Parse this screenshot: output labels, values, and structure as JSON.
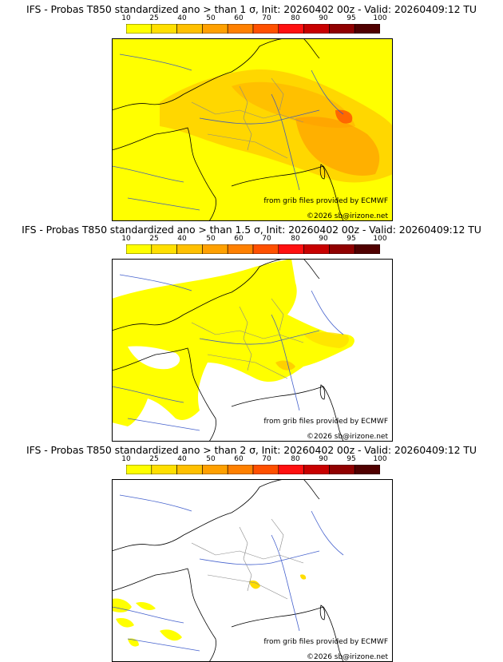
{
  "colorbar": {
    "ticks": [
      "10",
      "25",
      "40",
      "50",
      "60",
      "70",
      "80",
      "90",
      "95",
      "100"
    ],
    "colors": [
      "#ffff00",
      "#ffdf00",
      "#ffc000",
      "#ffa000",
      "#ff8000",
      "#ff5000",
      "#ff1010",
      "#c80000",
      "#900000",
      "#500000"
    ]
  },
  "panels": [
    {
      "title": "IFS - Probas T850  standardized ano > than 1 σ, Init: 20260402 00z - Valid: 20260409:12 TU",
      "credit_source": "from grib files provided by ECMWF",
      "credit_copy": "©2026 sb@irizone.net"
    },
    {
      "title": "IFS - Probas T850  standardized ano > than 1.5 σ, Init: 20260402 00z - Valid: 20260409:12 TU",
      "credit_source": "from grib files provided by ECMWF",
      "credit_copy": "©2026 sb@irizone.net"
    },
    {
      "title": "IFS - Probas T850  standardized ano > than 2 σ, Init: 20260402 00z - Valid: 20260409:12 TU",
      "credit_source": "from grib files provided by ECMWF",
      "credit_copy": "©2026 sb@irizone.net"
    }
  ]
}
